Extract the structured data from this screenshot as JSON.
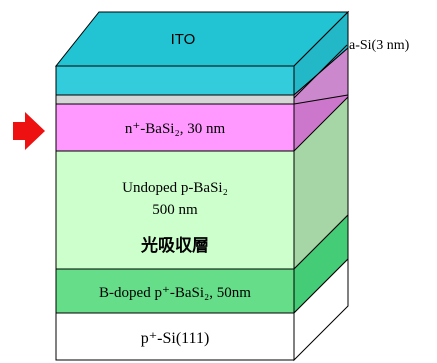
{
  "diagram": {
    "layers": [
      {
        "key": "ito",
        "lines": [
          "ITO"
        ],
        "font": "sans",
        "color": "#33CCDD"
      },
      {
        "key": "a-si",
        "lines": [
          ""
        ],
        "font": "serif",
        "color": "#D6D6D6"
      },
      {
        "key": "n-basi2",
        "lines": [
          "n⁺-BaSi₂, 30 nm"
        ],
        "font": "serif",
        "color": "#FF99FF"
      },
      {
        "key": "undoped-basi2",
        "lines": [
          "Undoped p-BaSi₂",
          "500 nm",
          "光吸収層"
        ],
        "font": "serif",
        "color": "#CCFFCC"
      },
      {
        "key": "b-doped-basi2",
        "lines": [
          "B-doped p⁺-BaSi₂, 50nm"
        ],
        "font": "serif",
        "color": "#66DD88"
      },
      {
        "key": "substrate",
        "lines": [
          "p⁺-Si(111)"
        ],
        "font": "serif",
        "color": "#FFFFFF"
      }
    ],
    "callout": "a-Si(3 nm)",
    "indicator": {
      "icon": "arrow-right-icon",
      "color": "#EE1111",
      "points_to": "n-basi2"
    }
  }
}
